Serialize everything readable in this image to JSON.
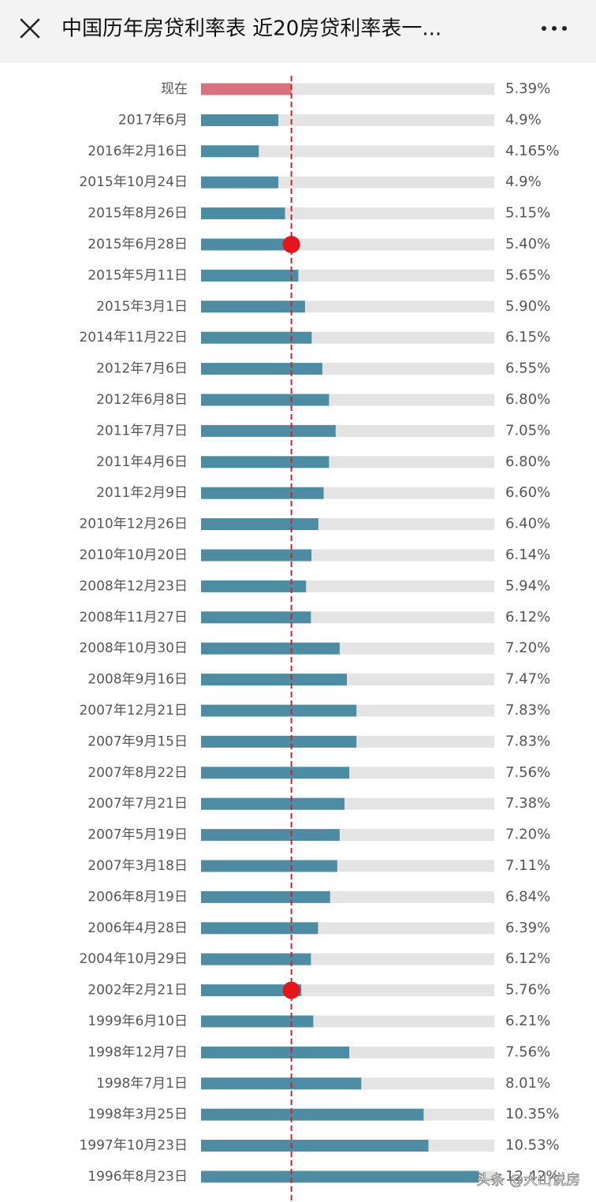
{
  "header": {
    "title": "中国历年房贷利率表 近20房贷利率表一..."
  },
  "watermark": "头条 @大山说房",
  "chart_data": {
    "type": "bar",
    "orientation": "horizontal",
    "categories": [
      "现在",
      "2017年6月",
      "2016年2月16日",
      "2015年10月24日",
      "2015年8月26日",
      "2015年6月28日",
      "2015年5月11日",
      "2015年3月1日",
      "2014年11月22日",
      "2012年7月6日",
      "2012年6月8日",
      "2011年7月7日",
      "2011年4月6日",
      "2011年2月9日",
      "2010年12月26日",
      "2010年10月20日",
      "2008年12月23日",
      "2008年11月27日",
      "2008年10月30日",
      "2008年9月16日",
      "2007年12月21日",
      "2007年9月15日",
      "2007年8月22日",
      "2007年7月21日",
      "2007年5月19日",
      "2007年3月18日",
      "2006年8月19日",
      "2006年4月28日",
      "2004年10月29日",
      "2002年2月21日",
      "1999年6月10日",
      "1998年12月7日",
      "1998年7月1日",
      "1998年3月25日",
      "1997年10月23日",
      "1996年8月23日"
    ],
    "values": [
      5.39,
      4.9,
      4.165,
      4.9,
      5.15,
      5.4,
      5.65,
      5.9,
      6.15,
      6.55,
      6.8,
      7.05,
      6.8,
      6.6,
      6.4,
      6.14,
      5.94,
      6.12,
      7.2,
      7.47,
      7.83,
      7.83,
      7.56,
      7.38,
      7.2,
      7.11,
      6.84,
      6.39,
      6.12,
      5.76,
      6.21,
      7.56,
      8.01,
      10.35,
      10.53,
      12.42
    ],
    "value_labels": [
      "5.39%",
      "4.9%",
      "4.165%",
      "4.9%",
      "5.15%",
      "5.40%",
      "5.65%",
      "5.90%",
      "6.15%",
      "6.55%",
      "6.80%",
      "7.05%",
      "6.80%",
      "6.60%",
      "6.40%",
      "6.14%",
      "5.94%",
      "6.12%",
      "7.20%",
      "7.47%",
      "7.83%",
      "7.83%",
      "7.56%",
      "7.38%",
      "7.20%",
      "7.11%",
      "6.84%",
      "6.39%",
      "6.12%",
      "5.76%",
      "6.21%",
      "7.56%",
      "8.01%",
      "10.35%",
      "10.53%",
      "12.42%"
    ],
    "colors": [
      "#d9727e",
      "#4d8ca2",
      "#4d8ca2",
      "#4d8ca2",
      "#4d8ca2",
      "#4d8ca2",
      "#4d8ca2",
      "#4d8ca2",
      "#4d8ca2",
      "#4d8ca2",
      "#4d8ca2",
      "#4d8ca2",
      "#4d8ca2",
      "#4d8ca2",
      "#4d8ca2",
      "#4d8ca2",
      "#4d8ca2",
      "#4d8ca2",
      "#4d8ca2",
      "#4d8ca2",
      "#4d8ca2",
      "#4d8ca2",
      "#4d8ca2",
      "#4d8ca2",
      "#4d8ca2",
      "#4d8ca2",
      "#4d8ca2",
      "#4d8ca2",
      "#4d8ca2",
      "#4d8ca2",
      "#4d8ca2",
      "#4d8ca2",
      "#4d8ca2",
      "#4d8ca2",
      "#4d8ca2",
      "#4d8ca2"
    ],
    "track_color": "#e4e4e4",
    "reference_line": {
      "color": "#c8262e"
    },
    "highlight": [
      5,
      29
    ],
    "xlim": [
      2,
      13
    ]
  }
}
